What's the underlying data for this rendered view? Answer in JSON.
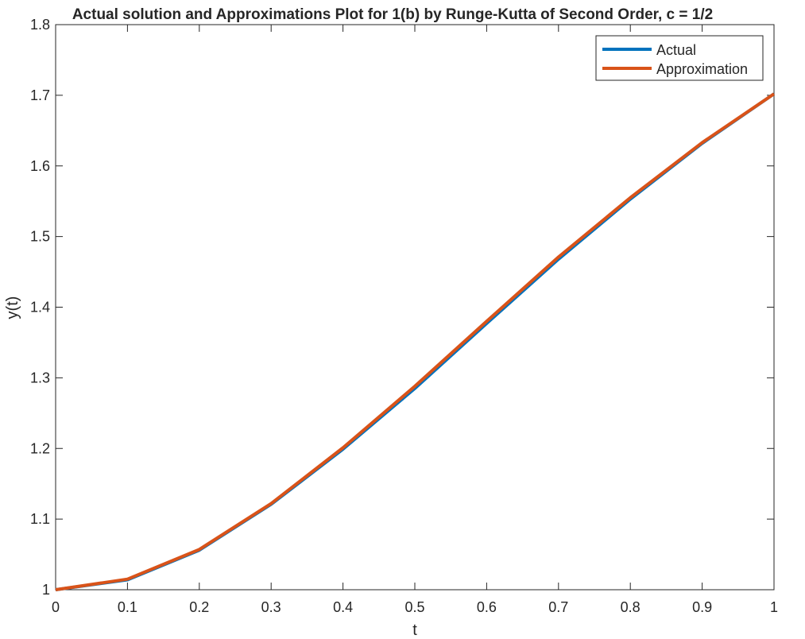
{
  "chart_data": {
    "type": "line",
    "title": "Actual solution and Approximations Plot for 1(b) by Runge-Kutta of Second Order, c = 1/2",
    "xlabel": "t",
    "ylabel": "y(t)",
    "xlim": [
      0,
      1
    ],
    "ylim": [
      1,
      1.8
    ],
    "xticks": [
      0,
      0.1,
      0.2,
      0.3,
      0.4,
      0.5,
      0.6,
      0.7,
      0.8,
      0.9,
      1
    ],
    "xtick_labels": [
      "0",
      "0.1",
      "0.2",
      "0.3",
      "0.4",
      "0.5",
      "0.6",
      "0.7",
      "0.8",
      "0.9",
      "1"
    ],
    "yticks": [
      1,
      1.1,
      1.2,
      1.3,
      1.4,
      1.5,
      1.6,
      1.7,
      1.8
    ],
    "ytick_labels": [
      "1",
      "1.1",
      "1.2",
      "1.3",
      "1.4",
      "1.5",
      "1.6",
      "1.7",
      "1.8"
    ],
    "grid": false,
    "legend_position": "top-right",
    "x": [
      0,
      0.1,
      0.2,
      0.3,
      0.4,
      0.5,
      0.6,
      0.7,
      0.8,
      0.9,
      1.0
    ],
    "series": [
      {
        "name": "Actual",
        "color": "#0072BD",
        "values": [
          1.0,
          1.014,
          1.056,
          1.121,
          1.199,
          1.285,
          1.377,
          1.468,
          1.553,
          1.632,
          1.702
        ]
      },
      {
        "name": "Approximation",
        "color": "#D95319",
        "values": [
          1.0,
          1.015,
          1.057,
          1.122,
          1.201,
          1.288,
          1.38,
          1.471,
          1.555,
          1.633,
          1.702
        ]
      }
    ]
  }
}
